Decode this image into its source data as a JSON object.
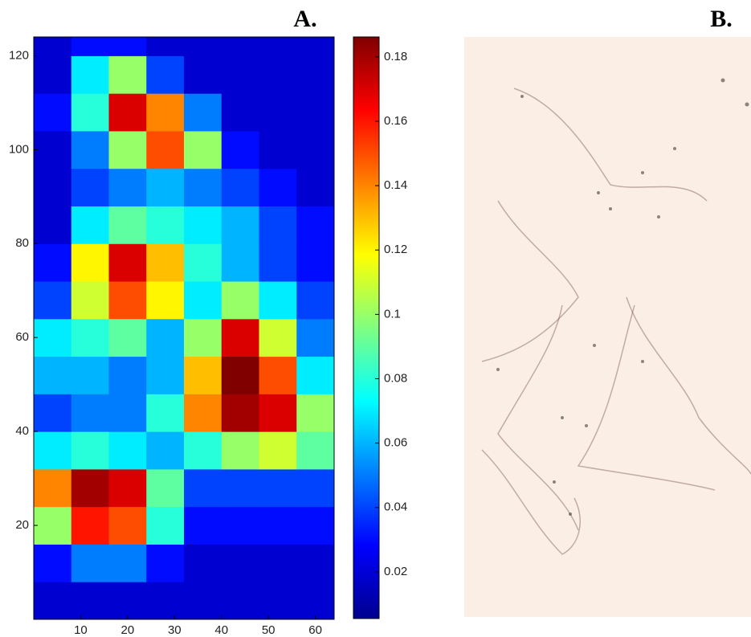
{
  "chart_data": {
    "type": "heatmap",
    "panel_label": "A.",
    "xbins": [
      0,
      8,
      16,
      24,
      32,
      40,
      48,
      56,
      64
    ],
    "ybins": [
      0,
      8,
      16,
      24,
      32,
      40,
      48,
      56,
      64,
      72,
      80,
      88,
      96,
      104,
      112,
      120,
      124
    ],
    "z": [
      [
        0.02,
        0.02,
        0.02,
        0.02,
        0.02,
        0.02,
        0.02,
        0.02
      ],
      [
        0.03,
        0.05,
        0.05,
        0.03,
        0.02,
        0.02,
        0.02,
        0.02
      ],
      [
        0.1,
        0.16,
        0.15,
        0.08,
        0.03,
        0.03,
        0.03,
        0.03
      ],
      [
        0.14,
        0.18,
        0.17,
        0.09,
        0.04,
        0.04,
        0.04,
        0.04
      ],
      [
        0.07,
        0.08,
        0.07,
        0.06,
        0.08,
        0.1,
        0.11,
        0.09
      ],
      [
        0.04,
        0.05,
        0.05,
        0.08,
        0.14,
        0.18,
        0.17,
        0.1
      ],
      [
        0.06,
        0.06,
        0.05,
        0.06,
        0.13,
        0.19,
        0.15,
        0.07
      ],
      [
        0.07,
        0.08,
        0.09,
        0.06,
        0.1,
        0.17,
        0.11,
        0.05
      ],
      [
        0.04,
        0.11,
        0.15,
        0.12,
        0.07,
        0.1,
        0.07,
        0.04
      ],
      [
        0.03,
        0.12,
        0.17,
        0.13,
        0.08,
        0.06,
        0.04,
        0.03
      ],
      [
        0.02,
        0.07,
        0.09,
        0.08,
        0.07,
        0.06,
        0.04,
        0.03
      ],
      [
        0.02,
        0.04,
        0.05,
        0.06,
        0.05,
        0.04,
        0.03,
        0.02
      ],
      [
        0.02,
        0.05,
        0.1,
        0.15,
        0.1,
        0.03,
        0.02,
        0.02
      ],
      [
        0.03,
        0.08,
        0.17,
        0.14,
        0.05,
        0.02,
        0.02,
        0.02
      ],
      [
        0.02,
        0.07,
        0.1,
        0.04,
        0.02,
        0.02,
        0.02,
        0.02
      ],
      [
        0.02,
        0.03,
        0.03,
        0.02,
        0.02,
        0.02,
        0.02,
        0.02
      ]
    ],
    "xlim": [
      0,
      64
    ],
    "xticks": [
      10,
      20,
      30,
      40,
      50,
      60
    ],
    "ylim": [
      0,
      124
    ],
    "yticks": [
      20,
      40,
      60,
      80,
      100,
      120
    ],
    "zlim": [
      0.0055,
      0.1862
    ],
    "zticks": [
      0.02,
      0.04,
      0.06,
      0.08,
      0.1,
      0.12,
      0.14,
      0.16,
      0.18
    ],
    "colormap": "jet"
  },
  "image_panel": {
    "label": "B."
  }
}
